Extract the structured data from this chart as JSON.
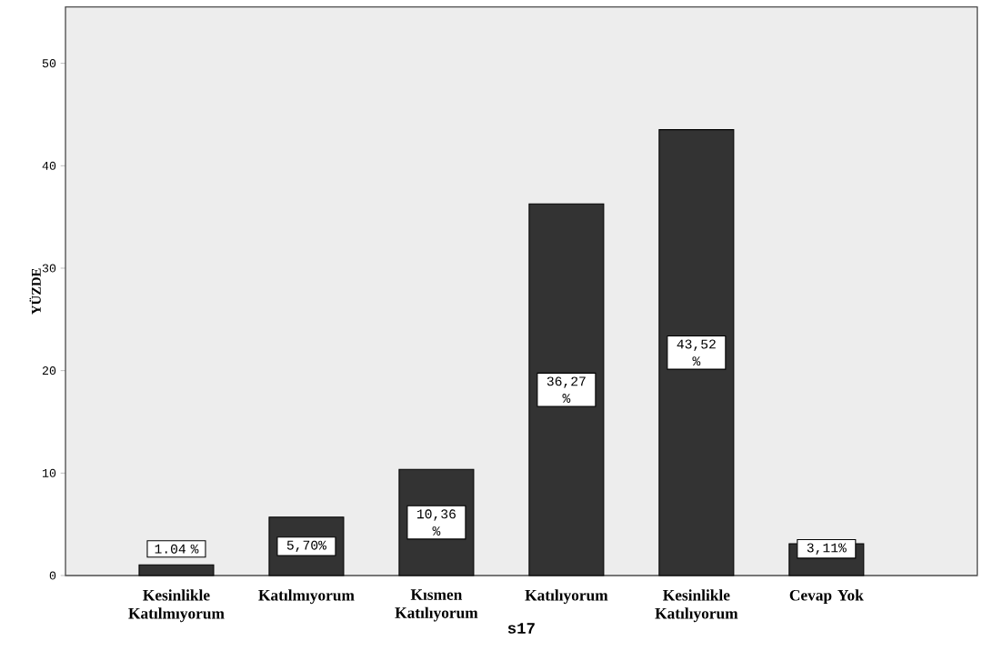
{
  "chart_data": {
    "type": "bar",
    "categories": [
      "Kesinlikle Katılmıyorum",
      "Katılmıyorum",
      "Kısmen Katılıyorum",
      "Katılıyorum",
      "Kesinlikle Katılıyorum",
      "Cevap Yok"
    ],
    "values": [
      1.04,
      5.7,
      10.36,
      36.27,
      43.52,
      3.11
    ],
    "value_labels": [
      "1.04 %",
      "5,70%",
      "10,36 %",
      "36,27 %",
      "43,52 %",
      "3,11%"
    ],
    "color": "#333333",
    "xlabel": "s17",
    "ylabel": "YÜZDE",
    "ylim": [
      0,
      55.5
    ],
    "yticks": [
      0,
      10,
      20,
      30,
      40,
      50
    ],
    "grid": false
  }
}
